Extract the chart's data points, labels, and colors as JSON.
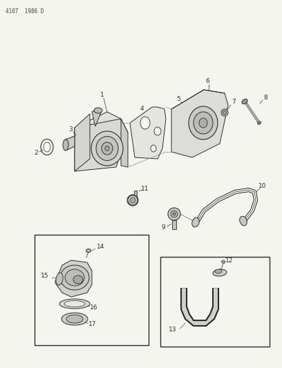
{
  "bg_color": "#f5f5f0",
  "line_color": "#2a2a2a",
  "header": "4107  1986 D",
  "fig_width": 4.08,
  "fig_height": 5.33,
  "dpi": 100
}
